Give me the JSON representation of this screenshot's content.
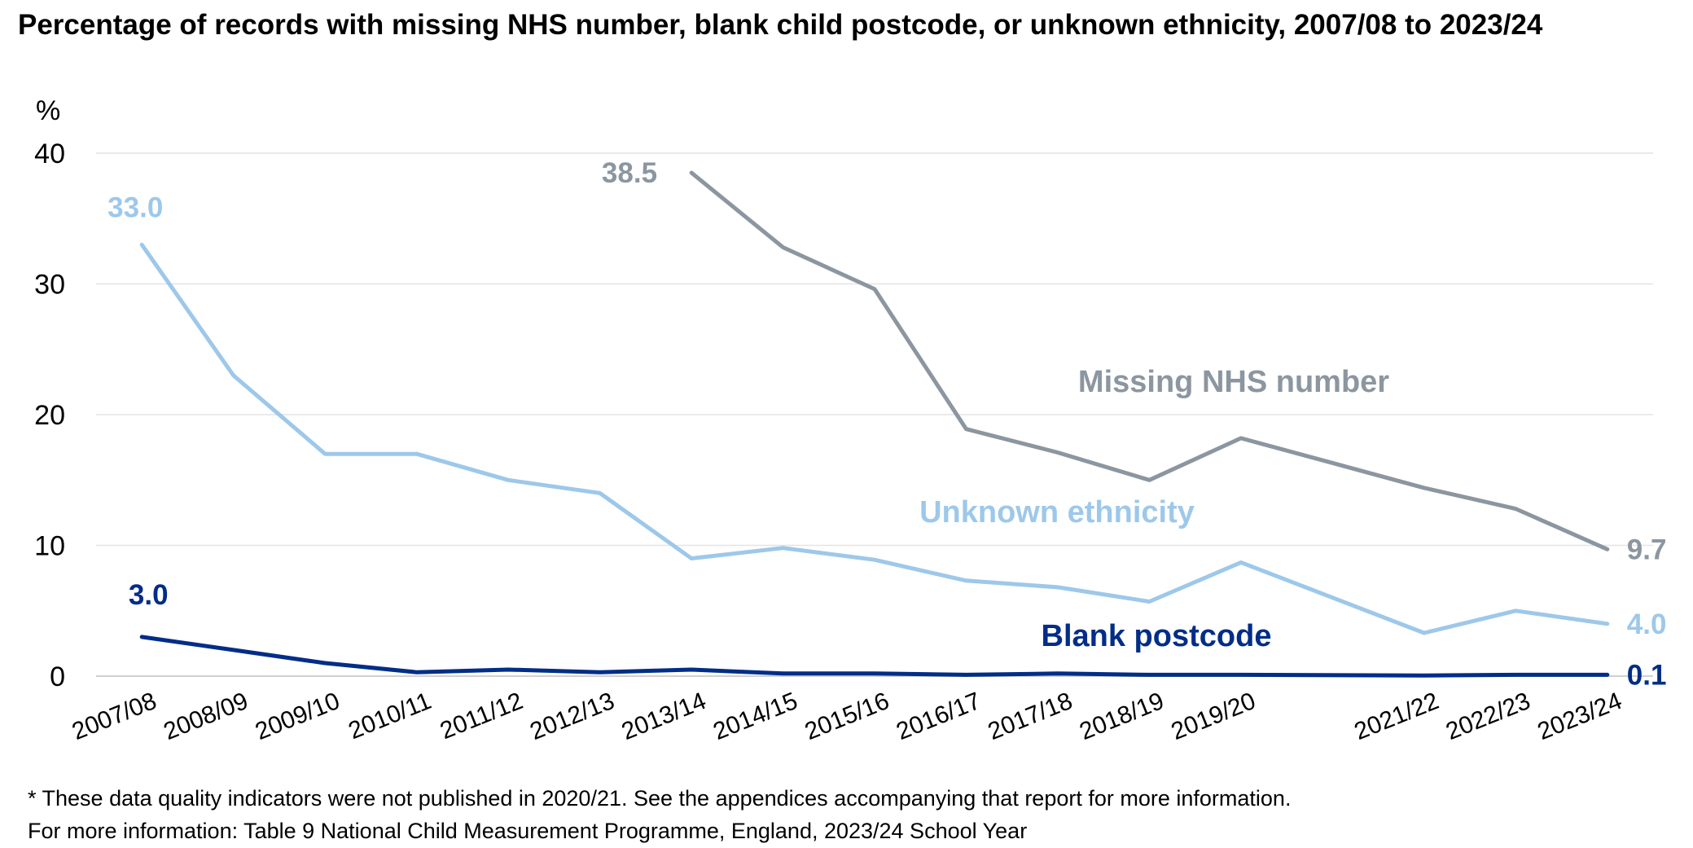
{
  "title": "Percentage of records with missing NHS number, blank child postcode, or unknown ethnicity, 2007/08 to 2023/24",
  "notes": {
    "note1": "* These data quality indicators were not published in 2020/21. See the appendices accompanying that report for more information.",
    "note2": "For more information: Table 9 National Child Measurement Programme, England, 2023/24 School Year"
  },
  "chart_data": {
    "type": "line",
    "ylabel": "%",
    "ylim": [
      0,
      40
    ],
    "yticks": [
      0,
      10,
      20,
      30,
      40
    ],
    "grid": true,
    "categories": [
      "2007/08",
      "2008/09",
      "2009/10",
      "2010/11",
      "2011/12",
      "2012/13",
      "2013/14",
      "2014/15",
      "2015/16",
      "2016/17",
      "2017/18",
      "2018/19",
      "2019/20",
      "2020/21",
      "2021/22",
      "2022/23",
      "2023/24"
    ],
    "tick_labels": [
      "2007/08",
      "2008/09",
      "2009/10",
      "2010/11",
      "2011/12",
      "2012/13",
      "2013/14",
      "2014/15",
      "2015/16",
      "2016/17",
      "2017/18",
      "2018/19",
      "2019/20",
      "",
      "2021/22",
      "2022/23",
      "2023/24"
    ],
    "series": [
      {
        "name": "Missing NHS number",
        "color": "#8c96a0",
        "values": [
          null,
          null,
          null,
          null,
          null,
          null,
          38.5,
          32.8,
          29.6,
          18.9,
          17.1,
          15.0,
          18.2,
          null,
          14.4,
          12.8,
          9.7
        ],
        "data_labels": [
          {
            "index": 6,
            "text": "38.5"
          },
          {
            "index": 16,
            "text": "9.7"
          }
        ]
      },
      {
        "name": "Unknown ethnicity",
        "color": "#9dc8ea",
        "values": [
          33.0,
          23.0,
          17.0,
          17.0,
          15.0,
          14.0,
          9.0,
          9.8,
          8.9,
          7.3,
          6.8,
          5.7,
          8.7,
          null,
          3.3,
          5.0,
          4.0
        ],
        "data_labels": [
          {
            "index": 0,
            "text": "33.0"
          },
          {
            "index": 16,
            "text": "4.0"
          }
        ]
      },
      {
        "name": "Blank postcode",
        "color": "#002d87",
        "values": [
          3.0,
          2.0,
          1.0,
          0.3,
          0.5,
          0.3,
          0.5,
          0.2,
          0.2,
          0.1,
          0.2,
          0.1,
          0.1,
          null,
          0.05,
          0.1,
          0.1
        ],
        "data_labels": [
          {
            "index": 0,
            "text": "3.0"
          },
          {
            "index": 16,
            "text": "0.1"
          }
        ]
      }
    ]
  }
}
